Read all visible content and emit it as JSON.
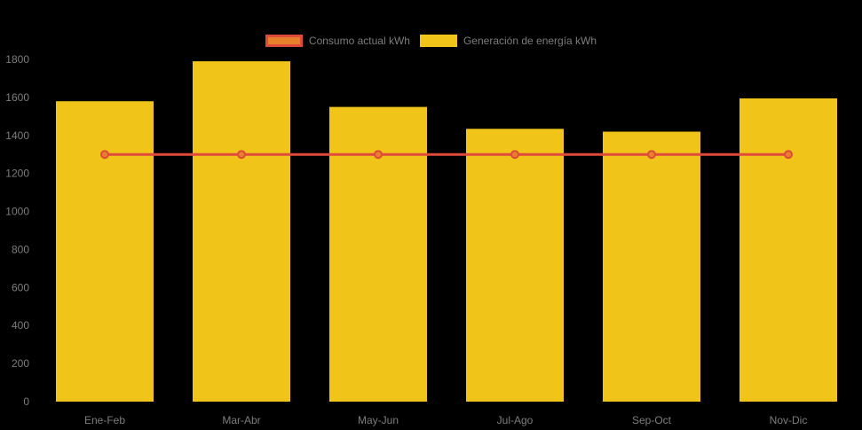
{
  "chart": {
    "background": "#000000",
    "text_color": "#7D7D7D"
  },
  "legend": {
    "position": "top",
    "items": [
      {
        "label": "Consumo actual kWh",
        "fill": "#E8802B",
        "border": "#DF4A3B",
        "border_width": 3
      },
      {
        "label": "Generación de energía kWh",
        "fill": "#F0C419",
        "border": "#F0C419",
        "border_width": 0
      }
    ]
  },
  "chart_data": {
    "type": "bar",
    "title": "",
    "xlabel": "",
    "ylabel": "",
    "categories": [
      "Ene-Feb",
      "Mar-Abr",
      "May-Jun",
      "Jul-Ago",
      "Sep-Oct",
      "Nov-Dic"
    ],
    "series": [
      {
        "name": "Consumo actual kWh",
        "type": "line",
        "values": [
          1300,
          1300,
          1300,
          1300,
          1300,
          1300
        ],
        "color": "#DF4A3B",
        "point_fill": "#E8802B",
        "point_radius": 4,
        "line_width": 3
      },
      {
        "name": "Generación de energía kWh",
        "type": "bar",
        "values": [
          1580,
          1790,
          1550,
          1435,
          1420,
          1595
        ],
        "color": "#F0C419"
      }
    ],
    "ylim": [
      0,
      1800
    ],
    "yticks": [
      0,
      200,
      400,
      600,
      800,
      1000,
      1200,
      1400,
      1600,
      1800
    ],
    "grid": false,
    "legend_position": "top"
  }
}
